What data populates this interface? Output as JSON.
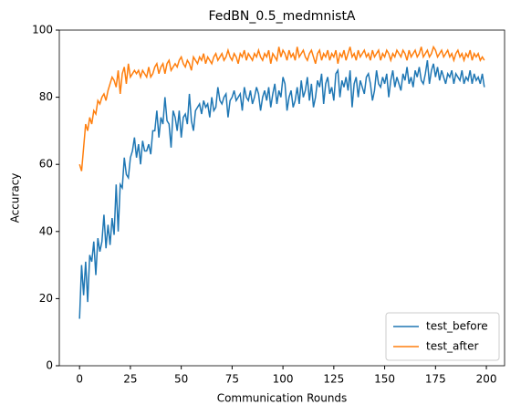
{
  "chart_data": {
    "type": "line",
    "title": "FedBN_0.5_medmnistA",
    "xlabel": "Communication Rounds",
    "ylabel": "Accuracy",
    "x": [
      0,
      1,
      2,
      3,
      4,
      5,
      6,
      7,
      8,
      9,
      10,
      11,
      12,
      13,
      14,
      15,
      16,
      17,
      18,
      19,
      20,
      21,
      22,
      23,
      24,
      25,
      26,
      27,
      28,
      29,
      30,
      31,
      32,
      33,
      34,
      35,
      36,
      37,
      38,
      39,
      40,
      41,
      42,
      43,
      44,
      45,
      46,
      47,
      48,
      49,
      50,
      51,
      52,
      53,
      54,
      55,
      56,
      57,
      58,
      59,
      60,
      61,
      62,
      63,
      64,
      65,
      66,
      67,
      68,
      69,
      70,
      71,
      72,
      73,
      74,
      75,
      76,
      77,
      78,
      79,
      80,
      81,
      82,
      83,
      84,
      85,
      86,
      87,
      88,
      89,
      90,
      91,
      92,
      93,
      94,
      95,
      96,
      97,
      98,
      99,
      100,
      101,
      102,
      103,
      104,
      105,
      106,
      107,
      108,
      109,
      110,
      111,
      112,
      113,
      114,
      115,
      116,
      117,
      118,
      119,
      120,
      121,
      122,
      123,
      124,
      125,
      126,
      127,
      128,
      129,
      130,
      131,
      132,
      133,
      134,
      135,
      136,
      137,
      138,
      139,
      140,
      141,
      142,
      143,
      144,
      145,
      146,
      147,
      148,
      149,
      150,
      151,
      152,
      153,
      154,
      155,
      156,
      157,
      158,
      159,
      160,
      161,
      162,
      163,
      164,
      165,
      166,
      167,
      168,
      169,
      170,
      171,
      172,
      173,
      174,
      175,
      176,
      177,
      178,
      179,
      180,
      181,
      182,
      183,
      184,
      185,
      186,
      187,
      188,
      189,
      190,
      191,
      192,
      193,
      194,
      195,
      196,
      197,
      198,
      199
    ],
    "series": [
      {
        "name": "test_before",
        "color": "#1f77b4",
        "values": [
          14,
          30,
          21,
          31,
          19,
          33,
          31,
          37,
          27,
          38,
          34,
          37,
          45,
          35,
          42,
          36,
          44,
          39,
          54,
          40,
          54,
          53,
          62,
          57,
          56,
          62,
          64,
          68,
          62,
          66,
          60,
          67,
          64,
          64,
          66,
          63,
          70,
          70,
          76,
          68,
          74,
          72,
          80,
          73,
          72,
          65,
          76,
          74,
          70,
          76,
          68,
          74,
          75,
          72,
          81,
          73,
          70,
          76,
          77,
          78,
          75,
          79,
          77,
          78,
          74,
          80,
          76,
          77,
          83,
          79,
          78,
          80,
          81,
          74,
          79,
          80,
          82,
          79,
          80,
          81,
          76,
          83,
          80,
          79,
          82,
          78,
          80,
          83,
          81,
          76,
          80,
          82,
          79,
          83,
          77,
          81,
          84,
          78,
          82,
          80,
          86,
          84,
          76,
          80,
          82,
          77,
          79,
          83,
          78,
          85,
          80,
          82,
          86,
          79,
          84,
          77,
          80,
          85,
          83,
          87,
          78,
          84,
          86,
          81,
          83,
          79,
          87,
          88,
          80,
          85,
          83,
          86,
          82,
          88,
          77,
          84,
          86,
          80,
          85,
          83,
          81,
          86,
          87,
          84,
          79,
          82,
          88,
          84,
          83,
          86,
          84,
          87,
          80,
          85,
          88,
          83,
          86,
          84,
          82,
          87,
          85,
          89,
          84,
          86,
          83,
          88,
          86,
          89,
          85,
          84,
          87,
          91,
          84,
          88,
          90,
          86,
          89,
          85,
          88,
          86,
          84,
          87,
          86,
          88,
          84,
          87,
          86,
          85,
          88,
          84,
          86,
          85,
          88,
          84,
          87,
          85,
          86,
          84,
          87,
          83
        ]
      },
      {
        "name": "test_after",
        "color": "#ff7f0e",
        "values": [
          60,
          58,
          65,
          72,
          70,
          74,
          72,
          76,
          75,
          79,
          78,
          80,
          81,
          79,
          82,
          84,
          86,
          85,
          83,
          88,
          81,
          87,
          89,
          84,
          90,
          86,
          87,
          88,
          87,
          88,
          86,
          88,
          87,
          86,
          89,
          86,
          87,
          89,
          90,
          87,
          89,
          90,
          87,
          90,
          91,
          88,
          89,
          90,
          89,
          91,
          92,
          90,
          89,
          91,
          90,
          88,
          92,
          91,
          90,
          92,
          91,
          93,
          90,
          92,
          91,
          90,
          92,
          93,
          91,
          92,
          93,
          91,
          92,
          94,
          92,
          91,
          93,
          92,
          90,
          93,
          92,
          94,
          91,
          93,
          92,
          91,
          93,
          92,
          94,
          92,
          91,
          93,
          92,
          94,
          90,
          93,
          92,
          91,
          95,
          92,
          94,
          93,
          91,
          94,
          92,
          93,
          91,
          95,
          92,
          93,
          94,
          92,
          91,
          93,
          94,
          92,
          90,
          93,
          94,
          91,
          93,
          92,
          94,
          91,
          93,
          92,
          94,
          90,
          93,
          92,
          94,
          91,
          93,
          95,
          92,
          93,
          91,
          94,
          92,
          93,
          94,
          92,
          93,
          91,
          94,
          92,
          93,
          94,
          91,
          93,
          92,
          94,
          93,
          91,
          93,
          92,
          94,
          93,
          92,
          94,
          93,
          91,
          94,
          92,
          93,
          94,
          92,
          93,
          95,
          92,
          93,
          94,
          92,
          93,
          95,
          94,
          92,
          93,
          94,
          92,
          93,
          94,
          92,
          93,
          91,
          93,
          94,
          92,
          93,
          91,
          93,
          92,
          94,
          91,
          93,
          92,
          93,
          91,
          92,
          91
        ]
      }
    ],
    "xlim": [
      -9.95,
      208.95
    ],
    "ylim": [
      0,
      100
    ],
    "xticks": [
      0,
      25,
      50,
      75,
      100,
      125,
      150,
      175,
      200
    ],
    "yticks": [
      0,
      20,
      40,
      60,
      80,
      100
    ],
    "legend": "lower right"
  }
}
